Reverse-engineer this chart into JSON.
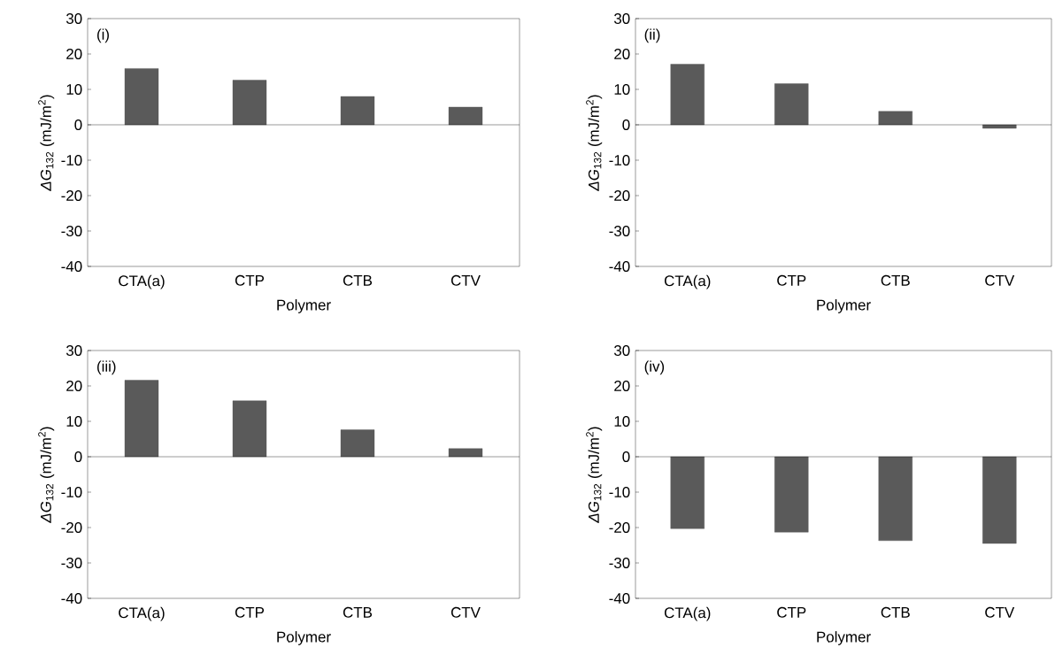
{
  "chart_data": [
    {
      "type": "bar",
      "categories": [
        "CTA(a)",
        "CTP",
        "CTB",
        "CTV"
      ],
      "values": [
        15.9,
        12.6,
        8.0,
        5.0
      ],
      "color": "#5a5a5a",
      "xlabel": "Polymer",
      "ylabel": "*ΔG*$_{132}$ (mJ/m$^{2}$)",
      "ylim": [
        -40,
        30
      ],
      "yticks": [
        -40,
        -30,
        -20,
        -10,
        0,
        10,
        20,
        30
      ],
      "annotations": [
        "(i)"
      ]
    },
    {
      "type": "bar",
      "categories": [
        "CTA(a)",
        "CTP",
        "CTB",
        "CTV"
      ],
      "values": [
        17.1,
        11.6,
        3.8,
        -1.0
      ],
      "color": "#5a5a5a",
      "xlabel": "Polymer",
      "ylabel": "*ΔG*$_{132}$ (mJ/m$^{2}$)",
      "ylim": [
        -40,
        30
      ],
      "yticks": [
        -40,
        -30,
        -20,
        -10,
        0,
        10,
        20,
        30
      ],
      "annotations": [
        "(ii)"
      ]
    },
    {
      "type": "bar",
      "categories": [
        "CTA(a)",
        "CTP",
        "CTB",
        "CTV"
      ],
      "values": [
        21.6,
        15.8,
        7.6,
        2.3
      ],
      "color": "#5a5a5a",
      "xlabel": "Polymer",
      "ylabel": "*ΔG*$_{132}$ (mJ/m$^{2}$)",
      "ylim": [
        -40,
        30
      ],
      "yticks": [
        -40,
        -30,
        -20,
        -10,
        0,
        10,
        20,
        30
      ],
      "annotations": [
        "(iii)"
      ]
    },
    {
      "type": "bar",
      "categories": [
        "CTA(a)",
        "CTP",
        "CTB",
        "CTV"
      ],
      "values": [
        -20.3,
        -21.3,
        -23.7,
        -24.5
      ],
      "color": "#5a5a5a",
      "xlabel": "Polymer",
      "ylabel": "*ΔG*$_{132}$ (mJ/m$^{2}$)",
      "ylim": [
        -40,
        30
      ],
      "yticks": [
        -40,
        -30,
        -20,
        -10,
        0,
        10,
        20,
        30
      ],
      "annotations": [
        "(iv)"
      ]
    }
  ]
}
